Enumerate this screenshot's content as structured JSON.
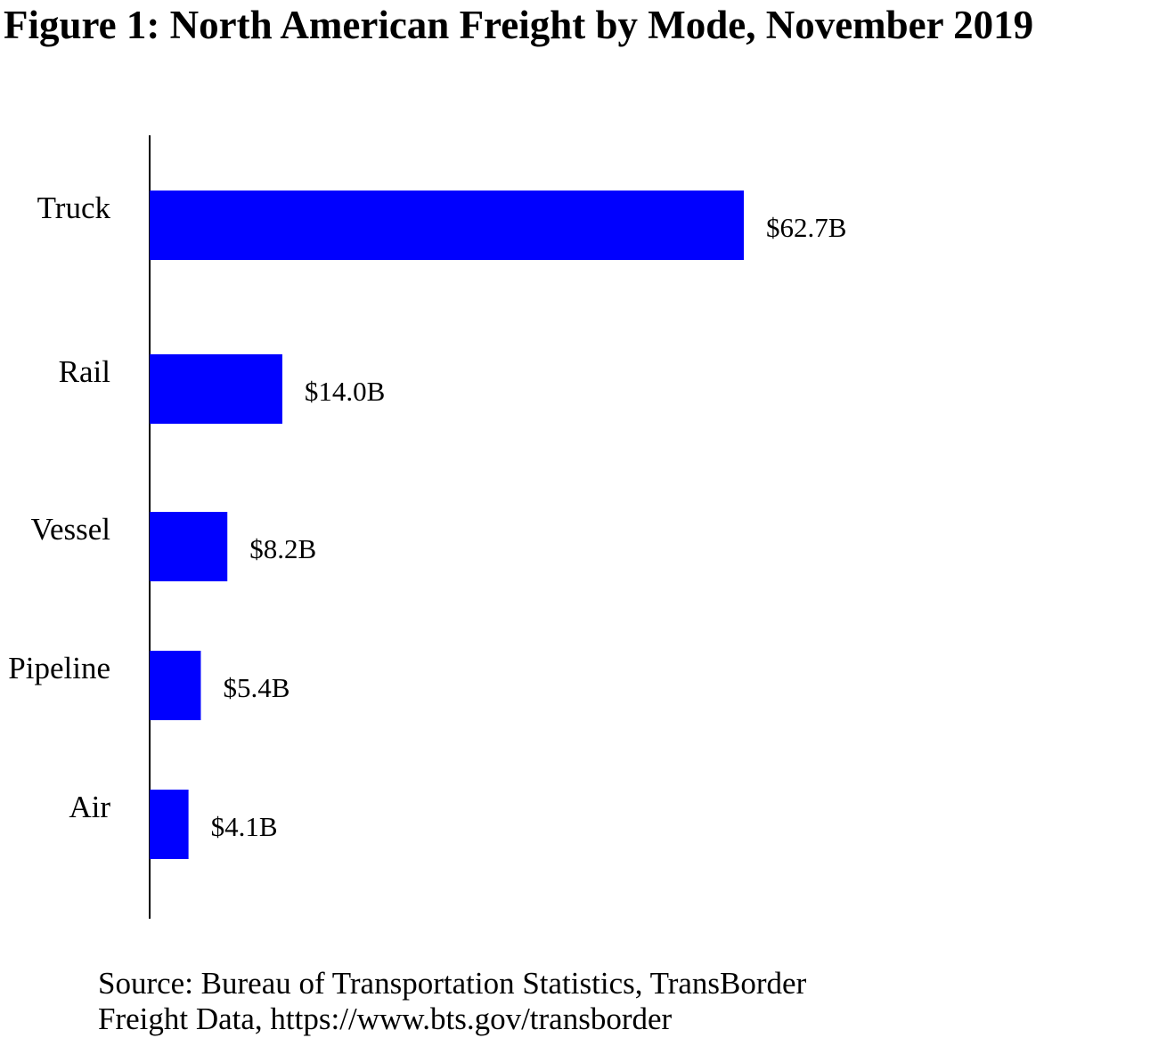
{
  "figure": {
    "title": "Figure 1: North American Freight by Mode, November 2019",
    "source_line1": "Source: Bureau of Transportation Statistics, TransBorder",
    "source_line2": "Freight Data, https://www.bts.gov/transborder"
  },
  "colors": {
    "bar": "#0000FF",
    "axis": "#000000",
    "text": "#000000"
  },
  "chart_data": {
    "type": "bar",
    "orientation": "horizontal",
    "categories": [
      "Truck",
      "Rail",
      "Vessel",
      "Pipeline",
      "Air"
    ],
    "values": [
      62.7,
      14.0,
      8.2,
      5.4,
      4.1
    ],
    "data_labels": [
      "$62.7B",
      "$14.0B",
      "$8.2B",
      "$5.4B",
      "$4.1B"
    ],
    "unit": "billion USD",
    "title": "Figure 1: North American Freight by Mode, November 2019",
    "xlabel": "",
    "ylabel": "",
    "xlim": [
      0,
      62.7
    ],
    "grid": false,
    "legend": "none"
  }
}
